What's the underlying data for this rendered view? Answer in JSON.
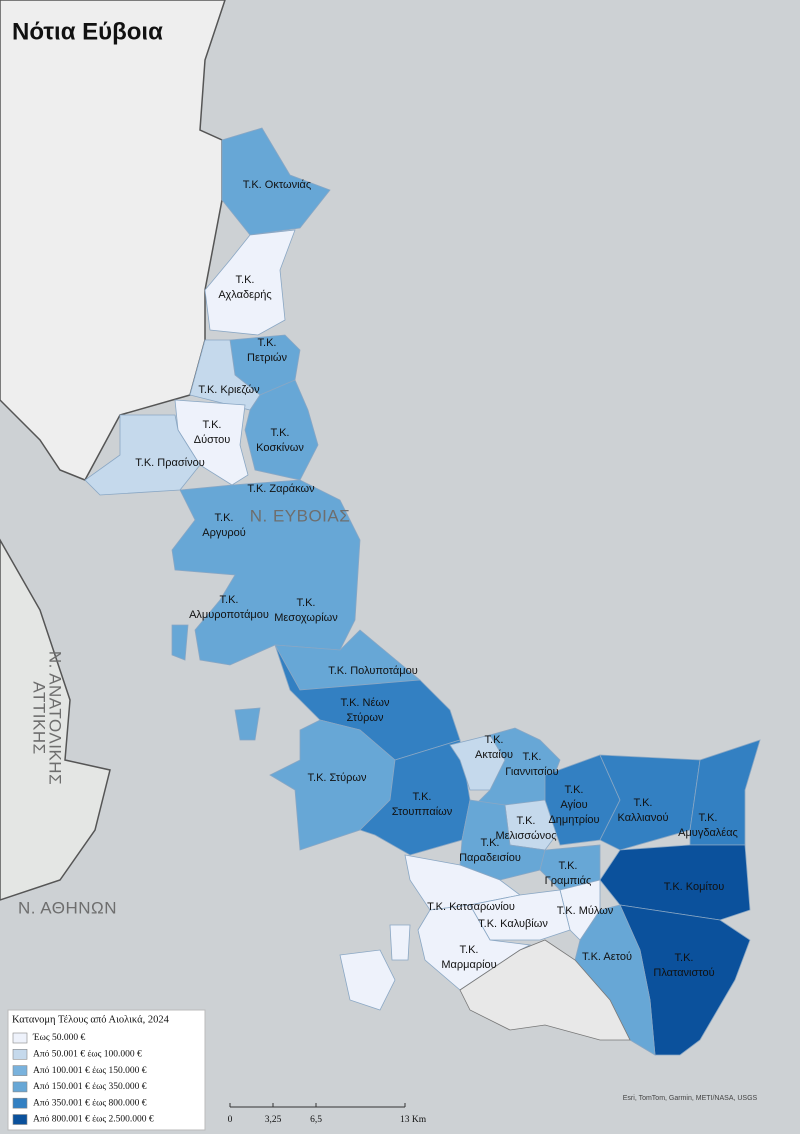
{
  "title": "Νότια Εύβοια",
  "region_labels": [
    [
      "Τ.Κ. Οκτωνιάς"
    ],
    [
      "Τ.Κ.",
      "Αχλαδερής"
    ],
    [
      "Τ.Κ.",
      "Πετριών"
    ],
    [
      "Τ.Κ. Κριεζών"
    ],
    [
      "Τ.Κ.",
      "Δύστου"
    ],
    [
      "Τ.Κ.",
      "Κοσκίνων"
    ],
    [
      "Τ.Κ. Πρασίνου"
    ],
    [
      "Τ.Κ. Ζαράκων"
    ],
    [
      "Τ.Κ.",
      "Αργυρού"
    ],
    [
      "Τ.Κ.",
      "Αλμυροποτάμου"
    ],
    [
      "Τ.Κ.",
      "Μεσοχωρίων"
    ],
    [
      "Τ.Κ. Πολυποτάμου"
    ],
    [
      "Τ.Κ. Νέων",
      "Στύρων"
    ],
    [
      "Τ.Κ.",
      "Ακταίου"
    ],
    [
      "Τ.Κ.",
      "Γιαννιτσίου"
    ],
    [
      "Τ.Κ. Στύρων"
    ],
    [
      "Τ.Κ.",
      "Στουππαίων"
    ],
    [
      "Τ.Κ.",
      "Αγίου",
      "Δημητρίου"
    ],
    [
      "Τ.Κ.",
      "Καλλιανού"
    ],
    [
      "Τ.Κ.",
      "Αμυγδαλέας"
    ],
    [
      "Τ.Κ.",
      "Μελισσώνος"
    ],
    [
      "Τ.Κ.",
      "Παραδεισίου"
    ],
    [
      "Τ.Κ.",
      "Γραμπιάς"
    ],
    [
      "Τ.Κ. Κομίτου"
    ],
    [
      "Τ.Κ. Κατσαρωνίου"
    ],
    [
      "Τ.Κ. Μύλων"
    ],
    [
      "Τ.Κ. Καλυβίων"
    ],
    [
      "Τ.Κ.",
      "Μαρμαρίου"
    ],
    [
      "Τ.Κ. Αετού"
    ],
    [
      "Τ.Κ.",
      "Πλατανιστού"
    ]
  ],
  "area_labels": [
    "Ν. ΕΥΒΟΙΑΣ",
    "Ν. ΑΝΑΤΟΛΙΚΗΣ",
    "ΑΤΤΙΚΗΣ",
    "Ν. ΑΘΗΝΩΝ"
  ],
  "legend": {
    "title": "Κατανομη Τέλους από Αιολικά, 2024",
    "classes": [
      {
        "label": "Έως 50.000 €",
        "color": "#eef2fb"
      },
      {
        "label": "Από 50.001 € έως 100.000 €",
        "color": "#c5d9ec"
      },
      {
        "label": "Από 100.001 € έως 150.000 €",
        "color": "#79b2dd"
      },
      {
        "label": "Από 150.001 € έως 350.000 €",
        "color": "#67a7d6"
      },
      {
        "label": "Από 350.001 € έως 800.000 €",
        "color": "#3380c2"
      },
      {
        "label": "Από 800.001 € έως 2.500.000 €",
        "color": "#0b519c"
      }
    ]
  },
  "scale_bar": [
    "0",
    "3,25",
    "6,5",
    "13 Km"
  ],
  "attribution": "Esri, TomTom, Garmin, METI/NASA, USGS"
}
